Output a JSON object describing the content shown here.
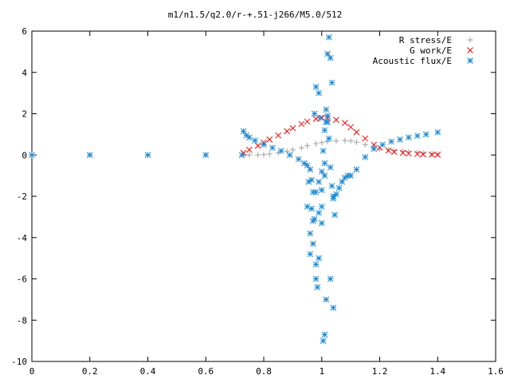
{
  "chart_data": {
    "type": "scatter",
    "title": "m1/n1.5/q2.0/r-+.51-j266/M5.0/512",
    "xlabel": "",
    "ylabel": "",
    "xlim": [
      0,
      1.6
    ],
    "ylim": [
      -10,
      6
    ],
    "x_ticks": [
      "0",
      "0.2",
      "0.4",
      "0.6",
      "0.8",
      "1",
      "1.2",
      "1.4",
      "1.6"
    ],
    "y_ticks": [
      "-10",
      "-8",
      "-6",
      "-4",
      "-2",
      "0",
      "2",
      "4",
      "6"
    ],
    "grid": false,
    "legend_position": "top-right",
    "series": [
      {
        "name": "R stress/E",
        "marker": "+",
        "color": "#a0a0a0",
        "x": [
          0.0,
          0.2,
          0.4,
          0.6,
          0.73,
          0.75,
          0.78,
          0.8,
          0.82,
          0.85,
          0.88,
          0.9,
          0.93,
          0.95,
          0.98,
          1.0,
          1.02,
          1.05,
          1.08,
          1.1,
          1.12,
          1.15,
          1.18,
          1.2,
          1.23,
          1.25,
          1.28,
          1.3,
          1.33,
          1.35,
          1.38,
          1.4
        ],
        "y": [
          0.0,
          0.0,
          0.0,
          0.0,
          0.0,
          0.0,
          0.0,
          0.02,
          0.05,
          0.1,
          0.18,
          0.25,
          0.35,
          0.45,
          0.55,
          0.6,
          0.65,
          0.68,
          0.7,
          0.68,
          0.62,
          0.5,
          0.38,
          0.3,
          0.25,
          0.22,
          0.19,
          0.16,
          0.13,
          0.1,
          0.07,
          0.05
        ]
      },
      {
        "name": "G work/E",
        "marker": "x",
        "color": "#ff0000",
        "x": [
          0.73,
          0.75,
          0.78,
          0.8,
          0.82,
          0.85,
          0.88,
          0.9,
          0.93,
          0.95,
          0.98,
          1.0,
          1.02,
          1.05,
          1.08,
          1.1,
          1.12,
          1.15,
          1.18,
          1.2,
          1.23,
          1.25,
          1.28,
          1.3,
          1.33,
          1.35,
          1.38,
          1.4
        ],
        "y": [
          0.1,
          0.25,
          0.45,
          0.6,
          0.75,
          0.95,
          1.15,
          1.3,
          1.5,
          1.62,
          1.75,
          1.8,
          1.78,
          1.7,
          1.55,
          1.35,
          1.1,
          0.8,
          0.5,
          0.35,
          0.22,
          0.15,
          0.1,
          0.07,
          0.05,
          0.03,
          0.02,
          0.01
        ]
      },
      {
        "name": "Acoustic flux/E",
        "marker": "*",
        "color": "#1a8ad4",
        "x": [
          0.0,
          0.2,
          0.4,
          0.6,
          0.725,
          0.73,
          0.74,
          0.75,
          0.77,
          0.8,
          0.83,
          0.86,
          0.89,
          0.92,
          0.94,
          0.95,
          0.96,
          0.965,
          0.97,
          0.975,
          0.98,
          0.99,
          0.995,
          1.0,
          1.005,
          1.01,
          1.015,
          1.02,
          1.025,
          1.03,
          1.035,
          1.04,
          1.05,
          1.06,
          1.07,
          1.08,
          1.09,
          1.1,
          1.12,
          1.15,
          1.18,
          1.21,
          1.24,
          1.27,
          1.3,
          1.33,
          1.36,
          1.4,
          0.95,
          0.96,
          0.97,
          0.98,
          0.985,
          0.99,
          1.0,
          1.005,
          1.01,
          1.015,
          1.02,
          1.025,
          1.03,
          1.035,
          1.04,
          1.045,
          0.955,
          0.965,
          0.975,
          0.98,
          0.99,
          1.0,
          1.01,
          1.015,
          1.02,
          1.03,
          1.04,
          0.96,
          0.97,
          0.98,
          0.99,
          1.0,
          1.01
        ],
        "y": [
          0.0,
          0.0,
          0.0,
          0.0,
          0.0,
          1.15,
          0.95,
          0.85,
          0.7,
          0.5,
          0.35,
          0.2,
          0.0,
          -0.2,
          -0.4,
          -0.5,
          -0.7,
          -1.2,
          -1.8,
          2.0,
          3.3,
          3.0,
          1.8,
          -1.7,
          0.2,
          1.2,
          1.6,
          1.9,
          0.8,
          -0.6,
          -1.5,
          -2.1,
          -1.9,
          -1.6,
          -1.3,
          -1.1,
          -1.0,
          -1.0,
          -0.7,
          -0.1,
          0.3,
          0.5,
          0.65,
          0.75,
          0.85,
          0.93,
          1.0,
          1.1,
          -2.5,
          -3.8,
          -4.3,
          -6.0,
          -6.4,
          -2.8,
          -3.3,
          -9.0,
          -8.7,
          -7.0,
          4.9,
          5.7,
          4.7,
          3.5,
          -2.0,
          -2.9,
          -1.3,
          -2.6,
          -3.1,
          -5.3,
          -5.0,
          -2.5,
          -1.0,
          2.2,
          1.6,
          -6.0,
          -7.4,
          -4.8,
          -3.2,
          -1.8,
          -1.3,
          -0.8,
          -0.4
        ]
      }
    ]
  }
}
